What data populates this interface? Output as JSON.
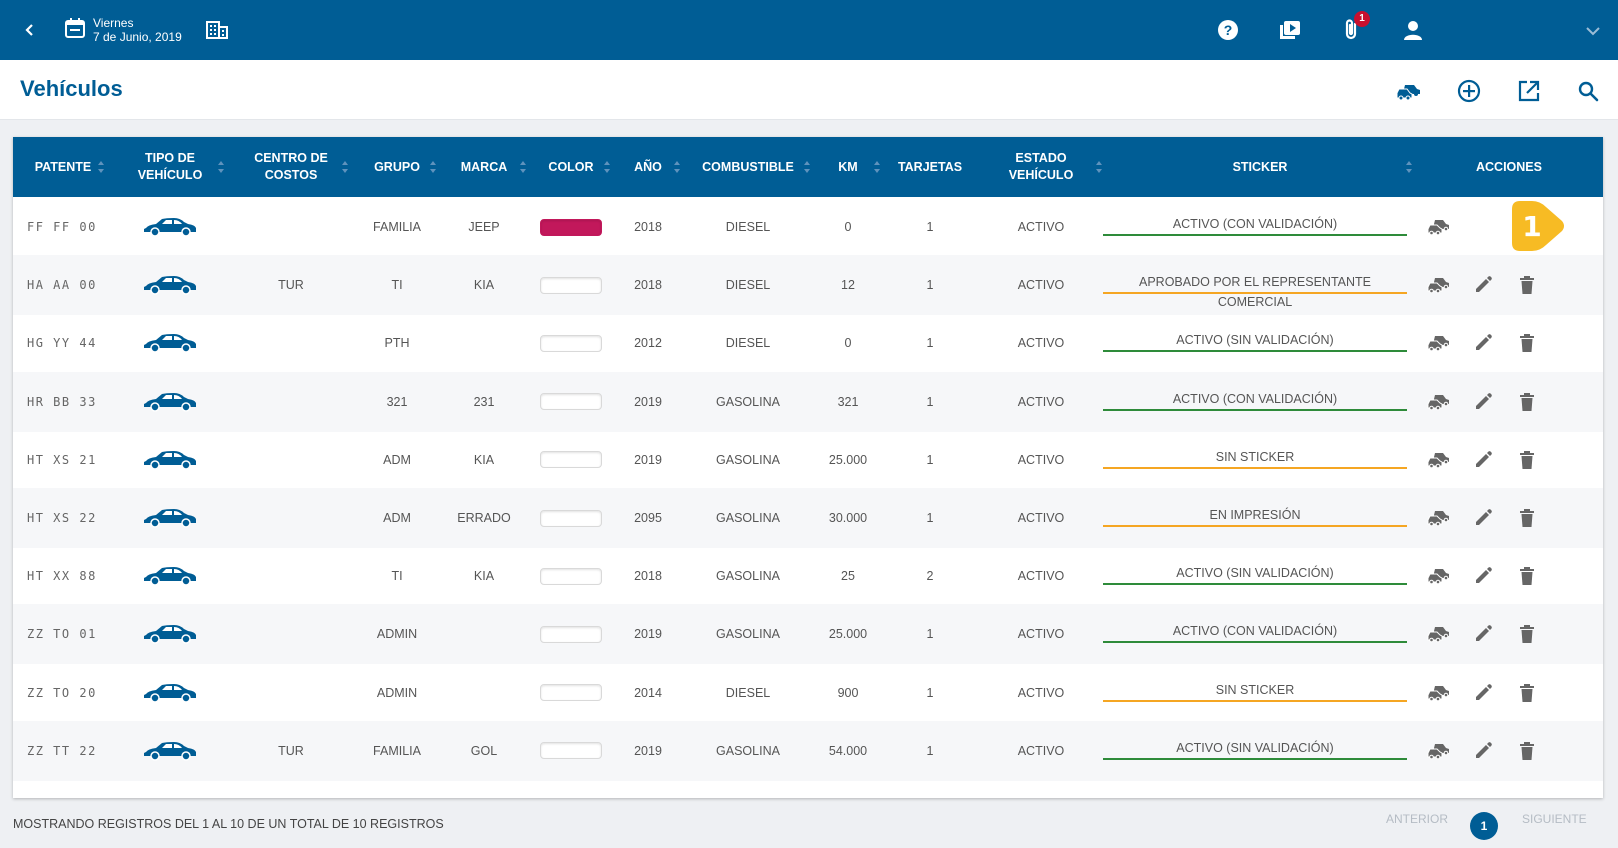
{
  "topbar": {
    "date_line1": "Viernes",
    "date_line2": "7 de Junio, 2019",
    "notification_count": "1",
    "icons": [
      "back-icon",
      "calendar-icon",
      "building-icon",
      "help-icon",
      "video-icon",
      "attachment-icon",
      "user-icon",
      "chevron-down-icon"
    ]
  },
  "page": {
    "title": "Vehículos",
    "header_icons": [
      "vehicles-icon",
      "add-icon",
      "export-icon",
      "search-icon"
    ]
  },
  "table": {
    "headers": {
      "patente": "PATENTE",
      "tipo1": "TIPO DE",
      "tipo2": "VEHÍCULO",
      "centro1": "CENTRO DE",
      "centro2": "COSTOS",
      "grupo": "GRUPO",
      "marca": "MARCA",
      "color": "COLOR",
      "anio": "AÑO",
      "combustible": "COMBUSTIBLE",
      "km": "KM",
      "tarjetas": "TARJETAS",
      "estado1": "ESTADO",
      "estado2": "VEHÍCULO",
      "sticker": "STICKER",
      "acciones": "ACCIONES"
    },
    "rows": [
      {
        "patente": "FF FF 00",
        "centro": "",
        "grupo": "FAMILIA",
        "marca": "JEEP",
        "color": "#c2185b",
        "anio": "2018",
        "combustible": "DIESEL",
        "km": "0",
        "tarjetas": "1",
        "estado": "ACTIVO",
        "sticker": "ACTIVO (CON VALIDACIÓN)",
        "sticker_color": "green"
      },
      {
        "patente": "HA AA 00",
        "centro": "TUR",
        "grupo": "TI",
        "marca": "KIA",
        "color": "#ffffff",
        "anio": "2018",
        "combustible": "DIESEL",
        "km": "12",
        "tarjetas": "1",
        "estado": "ACTIVO",
        "sticker": "APROBADO POR EL REPRESENTANTE COMERCIAL",
        "sticker_color": "orange"
      },
      {
        "patente": "HG YY 44",
        "centro": "",
        "grupo": "PTH",
        "marca": "",
        "color": "#ffffff",
        "anio": "2012",
        "combustible": "DIESEL",
        "km": "0",
        "tarjetas": "1",
        "estado": "ACTIVO",
        "sticker": "ACTIVO (SIN VALIDACIÓN)",
        "sticker_color": "green"
      },
      {
        "patente": "HR BB 33",
        "centro": "",
        "grupo": "321",
        "marca": "231",
        "color": "#ffffff",
        "anio": "2019",
        "combustible": "GASOLINA",
        "km": "321",
        "tarjetas": "1",
        "estado": "ACTIVO",
        "sticker": "ACTIVO (CON VALIDACIÓN)",
        "sticker_color": "green"
      },
      {
        "patente": "HT XS 21",
        "centro": "",
        "grupo": "ADM",
        "marca": "KIA",
        "color": "#ffffff",
        "anio": "2019",
        "combustible": "GASOLINA",
        "km": "25.000",
        "tarjetas": "1",
        "estado": "ACTIVO",
        "sticker": "SIN STICKER",
        "sticker_color": "orange"
      },
      {
        "patente": "HT XS 22",
        "centro": "",
        "grupo": "ADM",
        "marca": "ERRADO",
        "color": "#ffffff",
        "anio": "2095",
        "combustible": "GASOLINA",
        "km": "30.000",
        "tarjetas": "1",
        "estado": "ACTIVO",
        "sticker": "EN IMPRESIÓN",
        "sticker_color": "orange"
      },
      {
        "patente": "HT XX 88",
        "centro": "",
        "grupo": "TI",
        "marca": "KIA",
        "color": "#ffffff",
        "anio": "2018",
        "combustible": "GASOLINA",
        "km": "25",
        "tarjetas": "2",
        "estado": "ACTIVO",
        "sticker": "ACTIVO (SIN VALIDACIÓN)",
        "sticker_color": "green"
      },
      {
        "patente": "ZZ TO 01",
        "centro": "",
        "grupo": "ADMIN",
        "marca": "",
        "color": "#ffffff",
        "anio": "2019",
        "combustible": "GASOLINA",
        "km": "25.000",
        "tarjetas": "1",
        "estado": "ACTIVO",
        "sticker": "ACTIVO (CON VALIDACIÓN)",
        "sticker_color": "green"
      },
      {
        "patente": "ZZ TO 20",
        "centro": "",
        "grupo": "ADMIN",
        "marca": "",
        "color": "#ffffff",
        "anio": "2014",
        "combustible": "DIESEL",
        "km": "900",
        "tarjetas": "1",
        "estado": "ACTIVO",
        "sticker": "SIN STICKER",
        "sticker_color": "orange"
      },
      {
        "patente": "ZZ TT 22",
        "centro": "TUR",
        "grupo": "FAMILIA",
        "marca": "GOL",
        "color": "#ffffff",
        "anio": "2019",
        "combustible": "GASOLINA",
        "km": "54.000",
        "tarjetas": "1",
        "estado": "ACTIVO",
        "sticker": "ACTIVO (SIN VALIDACIÓN)",
        "sticker_color": "green"
      }
    ]
  },
  "marker": {
    "label": "1"
  },
  "footer": {
    "summary": "MOSTRANDO REGISTROS DEL 1 AL 10 DE UN TOTAL DE 10 REGISTROS",
    "prev": "ANTERIOR",
    "page": "1",
    "next": "SIGUIENTE"
  },
  "colors": {
    "primary": "#005d95",
    "green": "#2e8b3a",
    "orange": "#f5a623",
    "badge": "#c8102e",
    "marker": "#f7bb24"
  }
}
